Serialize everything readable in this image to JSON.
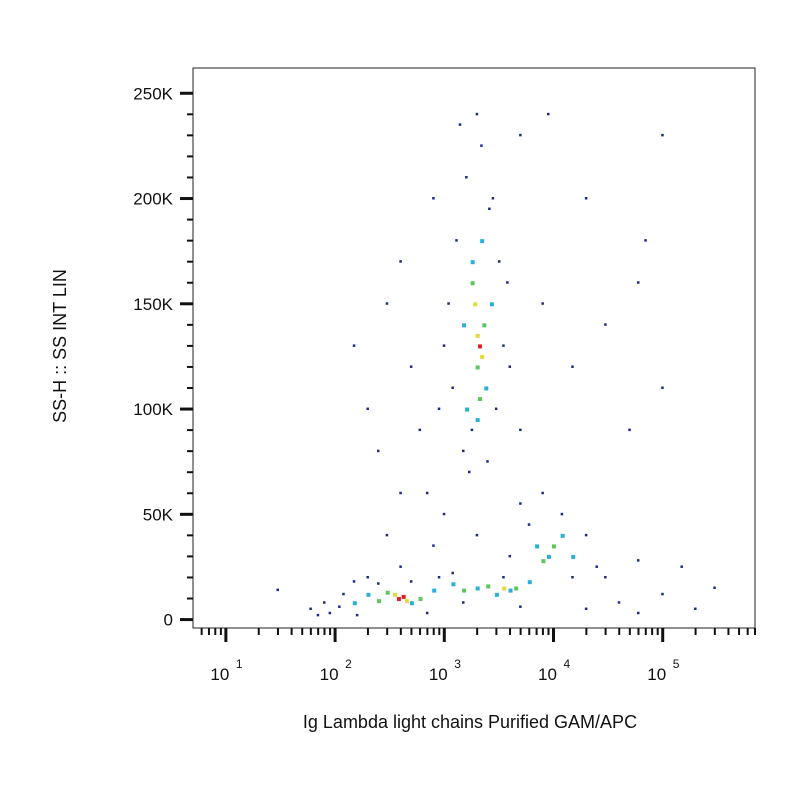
{
  "chart_data": {
    "type": "scatter",
    "x_label": "Ig Lambda light chains Purified GAM/APC",
    "y_label": "SS-H :: SS INT LIN",
    "xscale": "log",
    "xlim": [
      5,
      700000
    ],
    "ylim": [
      -4000,
      262000
    ],
    "xticks": [
      {
        "value": 10,
        "label": "10",
        "exponent": "1"
      },
      {
        "value": 100,
        "label": "10",
        "exponent": "2"
      },
      {
        "value": 1000,
        "label": "10",
        "exponent": "3"
      },
      {
        "value": 10000,
        "label": "10",
        "exponent": "4"
      },
      {
        "value": 100000,
        "label": "10",
        "exponent": "5"
      }
    ],
    "xminorticks": [
      6,
      7,
      8,
      9,
      20,
      30,
      40,
      50,
      60,
      70,
      80,
      90,
      200,
      300,
      400,
      500,
      600,
      700,
      800,
      900,
      2000,
      3000,
      4000,
      5000,
      6000,
      7000,
      8000,
      9000,
      20000,
      30000,
      40000,
      50000,
      60000,
      70000,
      80000,
      90000,
      200000,
      300000,
      400000,
      500000,
      600000,
      700000
    ],
    "yticks": [
      0,
      {
        "value": 50000,
        "label": "50K"
      },
      {
        "value": 100000,
        "label": "100K"
      },
      {
        "value": 150000,
        "label": "150K"
      },
      {
        "value": 200000,
        "label": "200K"
      },
      {
        "value": 250000,
        "label": "250K"
      }
    ],
    "yminorticks": [
      10000,
      20000,
      30000,
      40000,
      60000,
      70000,
      80000,
      90000,
      110000,
      120000,
      130000,
      140000,
      160000,
      170000,
      180000,
      190000,
      210000,
      220000,
      230000,
      240000
    ],
    "series": [
      {
        "color": "#1a2a8a",
        "x": [
          60,
          80,
          90,
          120,
          150,
          200,
          70,
          110,
          250,
          500,
          700,
          900,
          160,
          30,
          400,
          1200,
          1500,
          5000,
          20000,
          40000,
          60000,
          100000,
          200000,
          300000,
          150000,
          60000,
          30000,
          1500,
          2500,
          1800,
          1200,
          3000,
          3500,
          1100,
          1300,
          3200,
          2800,
          1600,
          2200,
          2000,
          1400,
          2600,
          1000,
          3800,
          4000,
          900,
          1700,
          300,
          500,
          200,
          400,
          600,
          800,
          150,
          250,
          700,
          5000,
          8000,
          15000,
          30000,
          60000,
          100000,
          50000,
          20000,
          9000,
          5000,
          100000,
          70000,
          400,
          300,
          1000,
          2000,
          800,
          4000,
          5000,
          8000,
          12000,
          20000,
          25000,
          6000,
          15000,
          3500
        ],
        "values": [
          5000,
          8000,
          3000,
          12000,
          18000,
          20000,
          2000,
          6000,
          17000,
          18000,
          3000,
          20000,
          2000,
          14000,
          25000,
          22000,
          8000,
          6000,
          5000,
          8000,
          3000,
          12000,
          5000,
          15000,
          25000,
          28000,
          20000,
          80000,
          75000,
          90000,
          110000,
          100000,
          130000,
          150000,
          180000,
          170000,
          200000,
          210000,
          225000,
          240000,
          235000,
          195000,
          130000,
          160000,
          120000,
          100000,
          70000,
          150000,
          120000,
          100000,
          170000,
          90000,
          200000,
          130000,
          80000,
          60000,
          90000,
          150000,
          120000,
          140000,
          160000,
          110000,
          90000,
          200000,
          240000,
          230000,
          230000,
          180000,
          60000,
          40000,
          50000,
          40000,
          35000,
          30000,
          55000,
          60000,
          50000,
          40000,
          25000,
          45000,
          20000,
          20000
        ]
      },
      {
        "color": "#2ab0d8",
        "x": [
          200,
          500,
          800,
          2000,
          3000,
          6000,
          1600,
          2400,
          1800,
          2200,
          1500,
          2700,
          2000,
          9000,
          12000,
          7000,
          15000,
          150,
          1200,
          4000
        ],
        "values": [
          12000,
          8000,
          14000,
          15000,
          12000,
          18000,
          100000,
          110000,
          170000,
          180000,
          140000,
          150000,
          95000,
          30000,
          40000,
          35000,
          30000,
          8000,
          17000,
          14000
        ]
      },
      {
        "color": "#5cc85c",
        "x": [
          300,
          600,
          1500,
          2500,
          4500,
          2000,
          1800,
          2300,
          2100,
          10000,
          8000,
          250
        ],
        "values": [
          13000,
          10000,
          14000,
          16000,
          15000,
          120000,
          160000,
          140000,
          105000,
          35000,
          28000,
          9000
        ]
      },
      {
        "color": "#e8d83a",
        "x": [
          350,
          450,
          3500,
          2000,
          2200,
          1900
        ],
        "values": [
          12000,
          9000,
          15000,
          135000,
          125000,
          150000
        ]
      },
      {
        "color": "#e02020",
        "x": [
          380,
          420,
          2100
        ],
        "values": [
          10000,
          11000,
          130000
        ]
      }
    ]
  }
}
